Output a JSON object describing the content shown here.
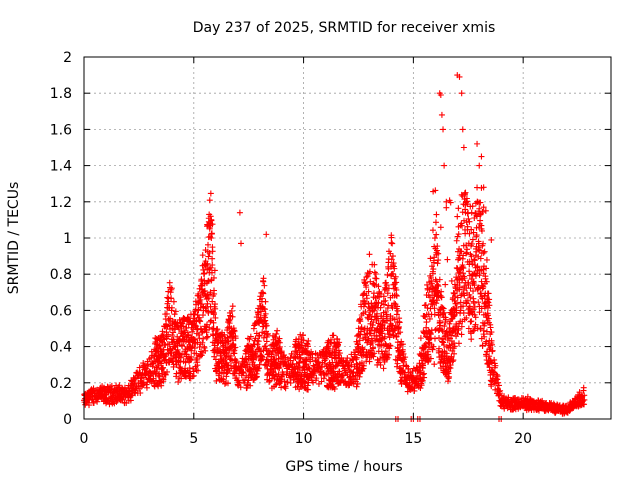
{
  "chart_data": {
    "type": "scatter",
    "title": "Day 237 of 2025, SRMTID for receiver xmis",
    "xlabel": "GPS time / hours",
    "ylabel": "SRMTID / TECUs",
    "xlim": [
      0,
      24
    ],
    "ylim": [
      0,
      2
    ],
    "xticks": [
      0,
      5,
      10,
      15,
      20
    ],
    "yticks": [
      0,
      0.2,
      0.4,
      0.6,
      0.8,
      1,
      1.2,
      1.4,
      1.6,
      1.8,
      2
    ],
    "xtick_labels": [
      "0",
      "5",
      "10",
      "15",
      "20"
    ],
    "ytick_labels": [
      "0",
      "0.2",
      "0.4",
      "0.6",
      "0.8",
      "1",
      "1.2",
      "1.4",
      "1.6",
      "1.8",
      "2"
    ],
    "grid": true,
    "marker": "plus",
    "color": "#ff0000",
    "series": [
      {
        "name": "SRMTID",
        "profile": [
          [
            0.0,
            0.1
          ],
          [
            0.5,
            0.14
          ],
          [
            1.0,
            0.13
          ],
          [
            1.5,
            0.14
          ],
          [
            2.0,
            0.13
          ],
          [
            2.4,
            0.2
          ],
          [
            2.8,
            0.26
          ],
          [
            3.2,
            0.3
          ],
          [
            3.6,
            0.34
          ],
          [
            3.9,
            0.55
          ],
          [
            4.2,
            0.4
          ],
          [
            4.6,
            0.38
          ],
          [
            5.0,
            0.42
          ],
          [
            5.3,
            0.55
          ],
          [
            5.6,
            0.75
          ],
          [
            5.8,
            0.9
          ],
          [
            6.0,
            0.35
          ],
          [
            6.4,
            0.32
          ],
          [
            6.8,
            0.45
          ],
          [
            7.0,
            0.22
          ],
          [
            7.4,
            0.3
          ],
          [
            7.8,
            0.38
          ],
          [
            8.2,
            0.55
          ],
          [
            8.4,
            0.28
          ],
          [
            8.8,
            0.35
          ],
          [
            9.2,
            0.25
          ],
          [
            9.6,
            0.3
          ],
          [
            10.0,
            0.32
          ],
          [
            10.5,
            0.28
          ],
          [
            11.0,
            0.3
          ],
          [
            11.5,
            0.32
          ],
          [
            12.0,
            0.25
          ],
          [
            12.4,
            0.3
          ],
          [
            12.8,
            0.55
          ],
          [
            13.2,
            0.6
          ],
          [
            13.6,
            0.45
          ],
          [
            14.0,
            0.72
          ],
          [
            14.4,
            0.35
          ],
          [
            14.8,
            0.2
          ],
          [
            15.2,
            0.22
          ],
          [
            15.6,
            0.5
          ],
          [
            16.0,
            0.8
          ],
          [
            16.3,
            0.45
          ],
          [
            16.6,
            0.35
          ],
          [
            17.0,
            0.7
          ],
          [
            17.3,
            0.9
          ],
          [
            17.6,
            0.8
          ],
          [
            18.0,
            0.85
          ],
          [
            18.3,
            0.6
          ],
          [
            18.6,
            0.3
          ],
          [
            19.0,
            0.1
          ],
          [
            19.5,
            0.08
          ],
          [
            20.0,
            0.09
          ],
          [
            20.5,
            0.08
          ],
          [
            21.0,
            0.07
          ],
          [
            21.5,
            0.06
          ],
          [
            22.0,
            0.05
          ],
          [
            22.5,
            0.1
          ],
          [
            22.8,
            0.13
          ]
        ],
        "peaks": [
          [
            5.7,
            1.13
          ],
          [
            5.75,
            1.08
          ],
          [
            5.8,
            1.0
          ],
          [
            7.1,
            1.14
          ],
          [
            7.15,
            0.97
          ],
          [
            8.3,
            1.02
          ],
          [
            13.0,
            0.91
          ],
          [
            14.0,
            0.8
          ],
          [
            16.2,
            1.8
          ],
          [
            16.25,
            1.79
          ],
          [
            16.3,
            1.68
          ],
          [
            16.35,
            1.6
          ],
          [
            16.4,
            1.4
          ],
          [
            16.5,
            1.2
          ],
          [
            17.0,
            1.9
          ],
          [
            17.1,
            1.89
          ],
          [
            17.2,
            1.8
          ],
          [
            17.25,
            1.6
          ],
          [
            17.3,
            1.5
          ],
          [
            17.4,
            1.2
          ],
          [
            17.9,
            1.52
          ],
          [
            18.0,
            1.4
          ],
          [
            18.1,
            1.45
          ],
          [
            18.2,
            1.28
          ],
          [
            18.3,
            1.15
          ],
          [
            18.1,
            1.05
          ]
        ],
        "zero_points": [
          14.2,
          14.3,
          14.9,
          15.0,
          15.2,
          15.3,
          18.9,
          19.0
        ]
      }
    ]
  }
}
